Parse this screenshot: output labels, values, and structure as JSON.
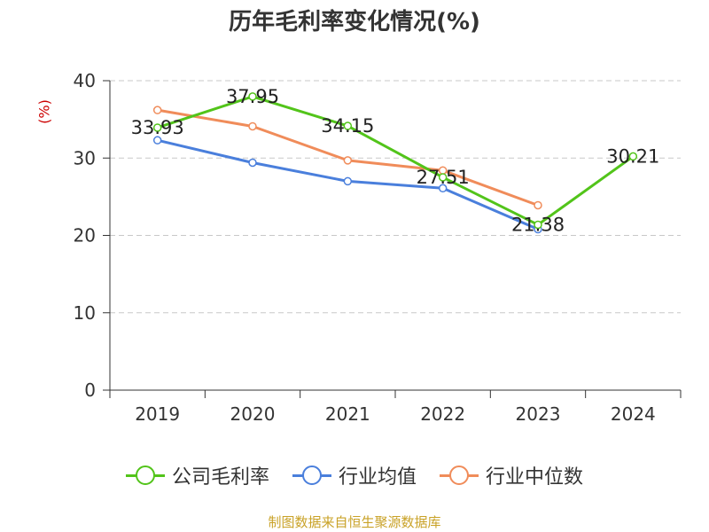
{
  "title": "历年毛利率变化情况(%)",
  "source": "制图数据来自恒生聚源数据库",
  "chart_data": {
    "type": "line",
    "ylabel": "(%)",
    "xlabel": "",
    "ylim": [
      0,
      40
    ],
    "yticks": [
      "0",
      "10",
      "20",
      "30",
      "40"
    ],
    "categories": [
      "2019",
      "2020",
      "2021",
      "2022",
      "2023",
      "2024"
    ],
    "grid": true,
    "legend": "bottom",
    "series": [
      {
        "name": "公司毛利率",
        "color": "#52c41a",
        "values": [
          33.93,
          37.95,
          34.15,
          27.51,
          21.38,
          30.21
        ],
        "labels": [
          "33.93",
          "37.95",
          "34.15",
          "27.51",
          "21.38",
          "30.21"
        ]
      },
      {
        "name": "行业均值",
        "color": "#4a7fdc",
        "values": [
          32.3,
          29.4,
          27.0,
          26.1,
          20.8,
          null
        ],
        "labels": []
      },
      {
        "name": "行业中位数",
        "color": "#f08c5a",
        "values": [
          36.2,
          34.1,
          29.7,
          28.4,
          23.9,
          null
        ],
        "labels": []
      }
    ]
  }
}
